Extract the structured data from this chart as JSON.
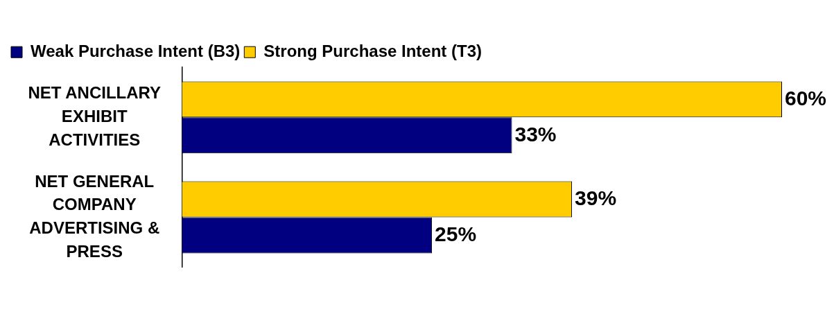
{
  "chart_data": {
    "type": "bar",
    "orientation": "horizontal",
    "categories": [
      "NET ANCILLARY EXHIBIT ACTIVITIES",
      "NET GENERAL COMPANY ADVERTISING & PRESS"
    ],
    "series": [
      {
        "name": "Strong Purchase Intent (T3)",
        "color": "#ffcc00",
        "values": [
          60,
          39
        ],
        "value_labels": [
          "60%",
          "39%"
        ]
      },
      {
        "name": "Weak Purchase Intent (B3)",
        "color": "#000080",
        "values": [
          33,
          25
        ],
        "value_labels": [
          "33%",
          "25%"
        ]
      }
    ],
    "legend": "top left",
    "grid": false
  }
}
